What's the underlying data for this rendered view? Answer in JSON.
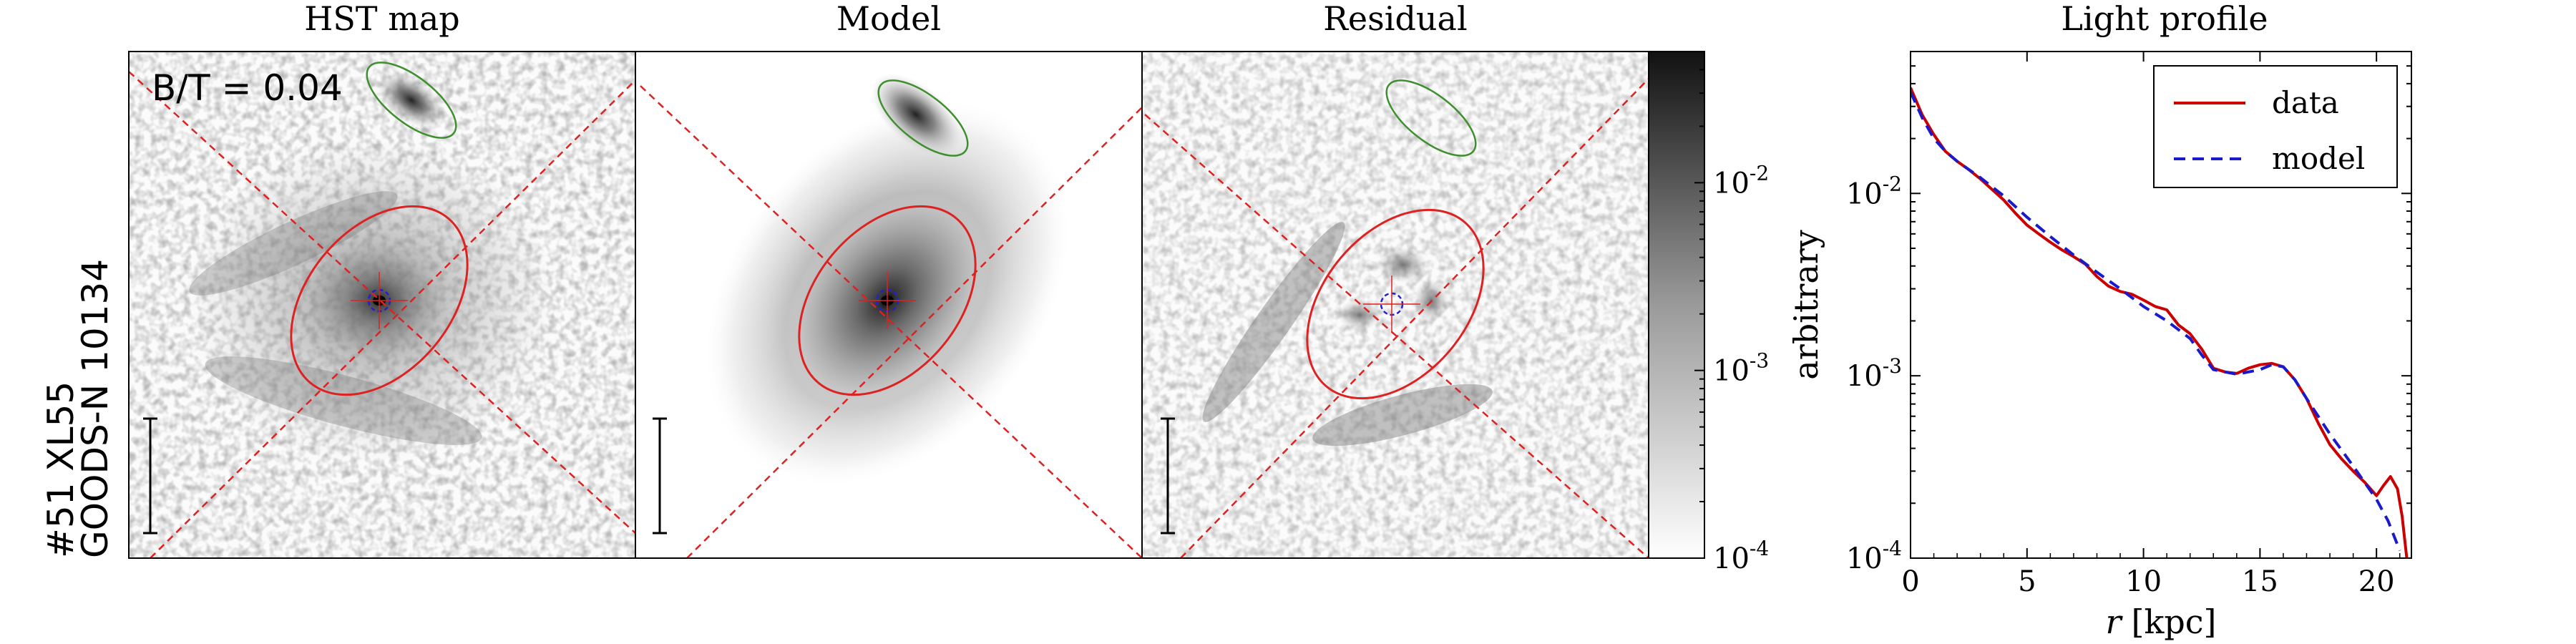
{
  "object_label": {
    "line1": "#51  XL55",
    "line2": "GOODS-N 10134"
  },
  "panels": {
    "hst": {
      "title": "HST map",
      "annotation": "B/T = 0.04"
    },
    "model": {
      "title": "Model"
    },
    "residual": {
      "title": "Residual"
    }
  },
  "colorbar": {
    "scale": "log",
    "range": [
      0.0001,
      0.05
    ],
    "ticks": [
      {
        "value": 0.01,
        "base": "10",
        "exp": "-2"
      },
      {
        "value": 0.001,
        "base": "10",
        "exp": "-3"
      },
      {
        "value": 0.0001,
        "base": "10",
        "exp": "-4"
      }
    ]
  },
  "colors": {
    "red_ellipse": "#dd2222",
    "green_ellipse": "#3f8f2f",
    "blue_circle": "#2222cc",
    "data_line": "#cc0000",
    "model_line": "#1a1acc"
  },
  "chart_data": {
    "type": "line",
    "title": "Light profile",
    "xlabel_var": "r",
    "xlabel_unit": "[kpc]",
    "ylabel": "arbitrary",
    "xlim": [
      0,
      21.5
    ],
    "ylim": [
      0.0001,
      0.06
    ],
    "yscale": "log",
    "xticks": [
      0,
      5,
      10,
      15,
      20
    ],
    "yticks": [
      {
        "value": 0.01,
        "base": "10",
        "exp": "-2"
      },
      {
        "value": 0.001,
        "base": "10",
        "exp": "-3"
      },
      {
        "value": 0.0001,
        "base": "10",
        "exp": "-4"
      }
    ],
    "legend": {
      "position": "top-right"
    },
    "series": [
      {
        "name": "data",
        "style": "solid",
        "x": [
          0,
          0.5,
          1,
          1.5,
          2,
          2.5,
          3,
          3.5,
          4,
          4.5,
          5,
          5.5,
          6,
          6.5,
          7,
          7.5,
          8,
          8.5,
          9,
          9.5,
          10,
          10.5,
          11,
          11.5,
          12,
          12.5,
          13,
          13.5,
          14,
          14.5,
          15,
          15.5,
          16,
          16.5,
          17,
          17.5,
          18,
          18.5,
          19,
          19.5,
          20,
          20.3,
          20.6,
          20.9,
          21.1,
          21.3
        ],
        "y": [
          0.038,
          0.027,
          0.021,
          0.017,
          0.015,
          0.0135,
          0.012,
          0.0105,
          0.0092,
          0.0078,
          0.0067,
          0.006,
          0.0054,
          0.0049,
          0.0045,
          0.0041,
          0.0035,
          0.0031,
          0.0029,
          0.0028,
          0.0026,
          0.0024,
          0.0023,
          0.0019,
          0.0017,
          0.0014,
          0.0011,
          0.00105,
          0.00103,
          0.0011,
          0.00115,
          0.00117,
          0.00112,
          0.00095,
          0.00075,
          0.00055,
          0.00042,
          0.00035,
          0.0003,
          0.00026,
          0.00022,
          0.00025,
          0.00028,
          0.00024,
          0.00017,
          0.0001
        ]
      },
      {
        "name": "model",
        "style": "dashed",
        "x": [
          0,
          0.5,
          1,
          1.5,
          2,
          3,
          4,
          5,
          6,
          7,
          8,
          9,
          10,
          11,
          12,
          12.5,
          13,
          14,
          15,
          15.5,
          16,
          16.5,
          17,
          18,
          19,
          20,
          20.5,
          21
        ],
        "y": [
          0.036,
          0.026,
          0.02,
          0.017,
          0.015,
          0.0122,
          0.0097,
          0.0074,
          0.0058,
          0.0046,
          0.0037,
          0.003,
          0.0024,
          0.002,
          0.0016,
          0.0013,
          0.00108,
          0.00102,
          0.00108,
          0.00115,
          0.00112,
          0.00095,
          0.00075,
          0.00048,
          0.00032,
          0.00021,
          0.00016,
          0.00011
        ]
      }
    ]
  }
}
